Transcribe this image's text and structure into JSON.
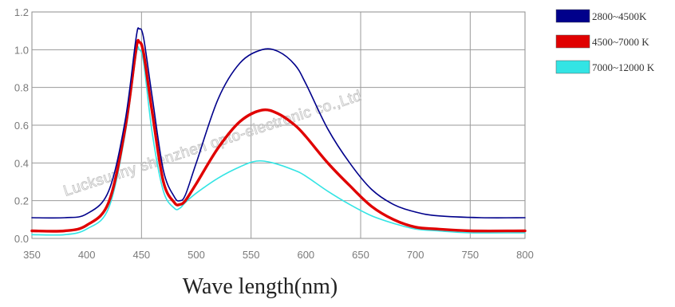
{
  "chart_data": {
    "type": "line",
    "title": "",
    "xlabel": "Wave length(nm)",
    "ylabel": "",
    "xlim": [
      350,
      800
    ],
    "ylim": [
      0,
      1.2
    ],
    "xticks": [
      "350",
      "400",
      "450",
      "500",
      "550",
      "600",
      "650",
      "700",
      "750",
      "800"
    ],
    "yticks": [
      "0.0",
      "0.2",
      "0.4",
      "0.6",
      "0.8",
      "1.0",
      "1.2"
    ],
    "grid": true,
    "legend_position": "right",
    "watermark": "Lucksunny shenzhen opto-electronic co.,Ltd",
    "series": [
      {
        "name": "2800~4500K",
        "color": "#00008b",
        "points": [
          [
            350,
            0.11
          ],
          [
            380,
            0.11
          ],
          [
            400,
            0.13
          ],
          [
            420,
            0.25
          ],
          [
            435,
            0.62
          ],
          [
            445,
            1.06
          ],
          [
            448,
            1.11
          ],
          [
            452,
            1.06
          ],
          [
            460,
            0.74
          ],
          [
            470,
            0.36
          ],
          [
            480,
            0.22
          ],
          [
            485,
            0.2
          ],
          [
            490,
            0.23
          ],
          [
            500,
            0.4
          ],
          [
            520,
            0.74
          ],
          [
            540,
            0.93
          ],
          [
            560,
            1.0
          ],
          [
            575,
            0.99
          ],
          [
            590,
            0.92
          ],
          [
            600,
            0.82
          ],
          [
            620,
            0.58
          ],
          [
            640,
            0.4
          ],
          [
            660,
            0.26
          ],
          [
            680,
            0.18
          ],
          [
            700,
            0.14
          ],
          [
            720,
            0.12
          ],
          [
            760,
            0.11
          ],
          [
            800,
            0.11
          ]
        ]
      },
      {
        "name": "4500~7000 K",
        "color": "#e00000",
        "points": [
          [
            350,
            0.04
          ],
          [
            380,
            0.04
          ],
          [
            400,
            0.07
          ],
          [
            420,
            0.19
          ],
          [
            435,
            0.58
          ],
          [
            445,
            1.0
          ],
          [
            448,
            1.04
          ],
          [
            452,
            0.98
          ],
          [
            460,
            0.66
          ],
          [
            470,
            0.3
          ],
          [
            480,
            0.19
          ],
          [
            485,
            0.18
          ],
          [
            490,
            0.2
          ],
          [
            500,
            0.29
          ],
          [
            520,
            0.48
          ],
          [
            540,
            0.62
          ],
          [
            560,
            0.68
          ],
          [
            575,
            0.66
          ],
          [
            590,
            0.6
          ],
          [
            600,
            0.54
          ],
          [
            620,
            0.4
          ],
          [
            640,
            0.28
          ],
          [
            660,
            0.17
          ],
          [
            680,
            0.1
          ],
          [
            700,
            0.06
          ],
          [
            720,
            0.05
          ],
          [
            750,
            0.04
          ],
          [
            800,
            0.04
          ]
        ]
      },
      {
        "name": "7000~12000 K",
        "color": "#33e4e4",
        "points": [
          [
            350,
            0.02
          ],
          [
            380,
            0.02
          ],
          [
            400,
            0.05
          ],
          [
            420,
            0.16
          ],
          [
            435,
            0.55
          ],
          [
            445,
            0.97
          ],
          [
            448,
            1.0
          ],
          [
            452,
            0.93
          ],
          [
            460,
            0.55
          ],
          [
            470,
            0.25
          ],
          [
            480,
            0.16
          ],
          [
            485,
            0.16
          ],
          [
            490,
            0.19
          ],
          [
            500,
            0.24
          ],
          [
            520,
            0.32
          ],
          [
            540,
            0.38
          ],
          [
            555,
            0.41
          ],
          [
            570,
            0.4
          ],
          [
            590,
            0.36
          ],
          [
            600,
            0.33
          ],
          [
            620,
            0.25
          ],
          [
            640,
            0.18
          ],
          [
            660,
            0.12
          ],
          [
            680,
            0.08
          ],
          [
            700,
            0.05
          ],
          [
            720,
            0.04
          ],
          [
            750,
            0.03
          ],
          [
            800,
            0.03
          ]
        ]
      }
    ]
  }
}
